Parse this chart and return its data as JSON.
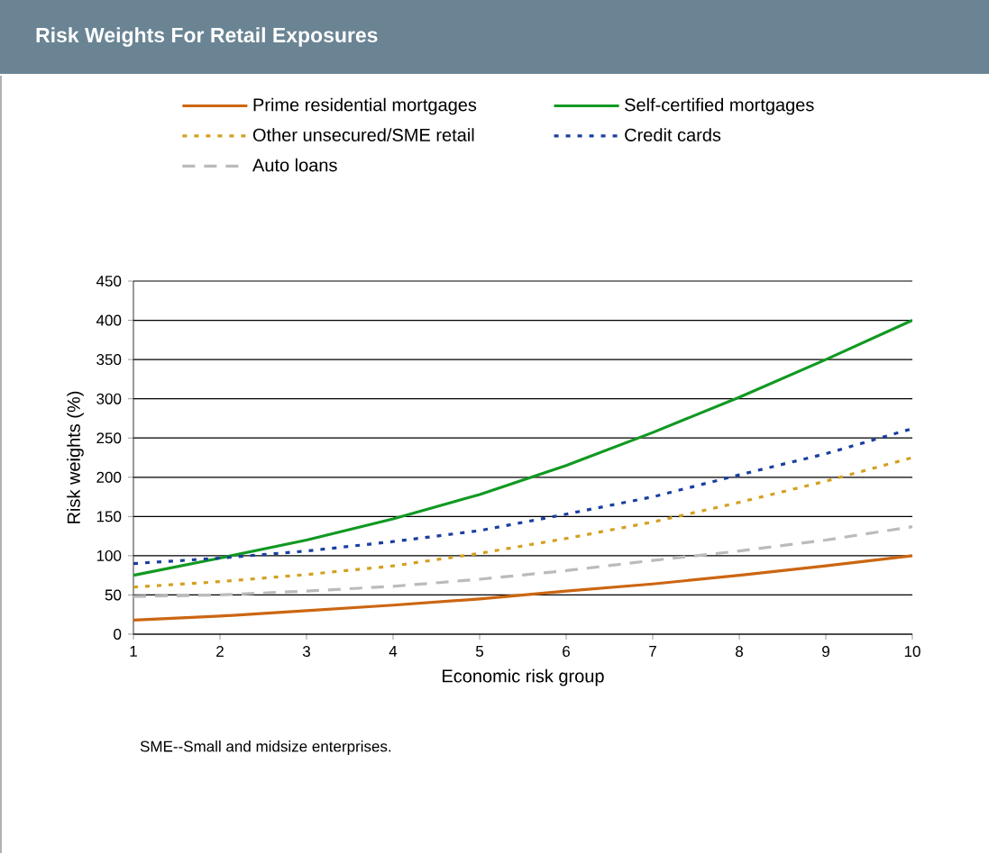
{
  "chart_data": {
    "type": "line",
    "title": "Risk Weights For Retail Exposures",
    "xlabel": "Economic risk group",
    "ylabel": "Risk weights (%)",
    "x": [
      1,
      2,
      3,
      4,
      5,
      6,
      7,
      8,
      9,
      10
    ],
    "series": [
      {
        "name": "Prime residential mortgages",
        "color": "#cc6611",
        "line_style": "solid",
        "values": [
          18,
          23,
          30,
          37,
          45,
          55,
          64,
          75,
          87,
          100
        ]
      },
      {
        "name": "Self-certified mortgages",
        "color": "#119922",
        "line_style": "solid",
        "values": [
          75,
          97,
          120,
          147,
          178,
          215,
          257,
          302,
          350,
          400
        ]
      },
      {
        "name": "Other unsecured/SME retail",
        "color": "#d4a020",
        "line_style": "dotted",
        "values": [
          60,
          67,
          76,
          87,
          103,
          122,
          143,
          168,
          195,
          225
        ]
      },
      {
        "name": "Credit cards",
        "color": "#1a3fa0",
        "line_style": "dotted",
        "values": [
          90,
          97,
          106,
          118,
          132,
          153,
          175,
          203,
          230,
          262
        ]
      },
      {
        "name": "Auto loans",
        "color": "#bbbbbb",
        "line_style": "dashed",
        "values": [
          48,
          50,
          55,
          61,
          70,
          81,
          94,
          106,
          120,
          137
        ]
      }
    ],
    "xlim": [
      1,
      10
    ],
    "ylim": [
      0,
      450
    ],
    "xticks": [
      1,
      2,
      3,
      4,
      5,
      6,
      7,
      8,
      9,
      10
    ],
    "yticks": [
      0,
      50,
      100,
      150,
      200,
      250,
      300,
      350,
      400,
      450
    ],
    "grid": "y",
    "legend": "top",
    "annotations": [
      "SME--Small and midsize enterprises."
    ]
  }
}
